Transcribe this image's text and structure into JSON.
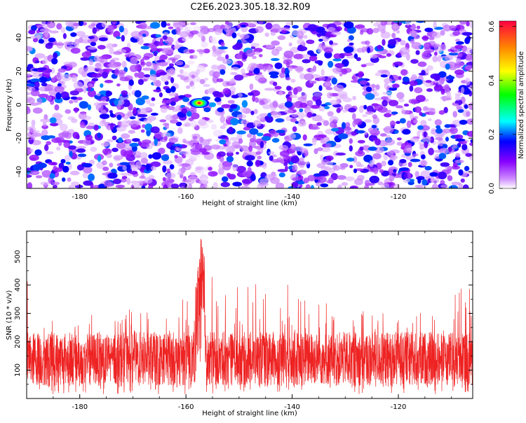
{
  "title": "C2E6.2023.305.18.32.R09",
  "chart_data": [
    {
      "type": "heatmap",
      "xlabel": "Height of straight line (km)",
      "ylabel": "Frequency (Hz)",
      "xlim": [
        -190,
        -106
      ],
      "ylim": [
        -50,
        50
      ],
      "xticks": [
        -180,
        -160,
        -140,
        -120
      ],
      "yticks": [
        -40,
        -20,
        0,
        20,
        40
      ],
      "colorbar": {
        "label": "Normalized spectral amplitude",
        "range": [
          0,
          0.62
        ],
        "ticks": [
          0.0,
          0.2,
          0.4,
          0.6
        ],
        "colormap": [
          "#ffffff",
          "#cc88ff",
          "#8800ff",
          "#0000ff",
          "#00ffff",
          "#00ff00",
          "#ffff00",
          "#ff8800",
          "#ff0040"
        ]
      },
      "peak": {
        "x": -157.5,
        "y": 1,
        "value": 0.62
      },
      "background_level": 0.12
    },
    {
      "type": "line",
      "xlabel": "Height of straight line (km)",
      "ylabel": "SNR (10 * v/v)",
      "xlim": [
        -190,
        -106
      ],
      "ylim": [
        0,
        590
      ],
      "xticks": [
        -180,
        -160,
        -140,
        -120
      ],
      "yticks": [
        100,
        200,
        300,
        400,
        500
      ],
      "series": [
        {
          "color": "#ee2222",
          "noise_mean": 140,
          "noise_spread": 190,
          "points": [
            [
              -189.6,
              250
            ],
            [
              -186.5,
              290
            ],
            [
              -183.0,
              300
            ],
            [
              -178.5,
              310
            ],
            [
              -173.0,
              300
            ],
            [
              -169.5,
              330
            ],
            [
              -166.0,
              310
            ],
            [
              -162.0,
              325
            ],
            [
              -158.5,
              420
            ],
            [
              -157.6,
              480
            ],
            [
              -157.2,
              590
            ],
            [
              -156.6,
              520
            ],
            [
              -155.5,
              440
            ],
            [
              -151.0,
              420
            ],
            [
              -145.0,
              420
            ],
            [
              -140.0,
              405
            ],
            [
              -135.0,
              380
            ],
            [
              -130.0,
              300
            ],
            [
              -126.0,
              310
            ],
            [
              -120.0,
              300
            ],
            [
              -114.0,
              310
            ],
            [
              -110.0,
              380
            ],
            [
              -107.0,
              400
            ],
            [
              -106.4,
              480
            ]
          ]
        }
      ]
    }
  ]
}
